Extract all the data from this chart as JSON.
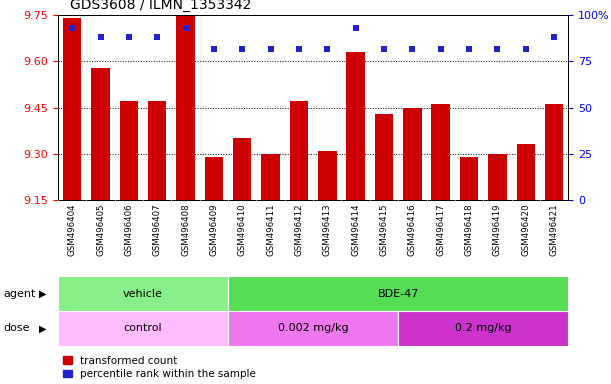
{
  "title": "GDS3608 / ILMN_1353342",
  "samples": [
    "GSM496404",
    "GSM496405",
    "GSM496406",
    "GSM496407",
    "GSM496408",
    "GSM496409",
    "GSM496410",
    "GSM496411",
    "GSM496412",
    "GSM496413",
    "GSM496414",
    "GSM496415",
    "GSM496416",
    "GSM496417",
    "GSM496418",
    "GSM496419",
    "GSM496420",
    "GSM496421"
  ],
  "bar_values": [
    9.74,
    9.58,
    9.47,
    9.47,
    9.75,
    9.29,
    9.35,
    9.3,
    9.47,
    9.31,
    9.63,
    9.43,
    9.45,
    9.46,
    9.29,
    9.3,
    9.33,
    9.46
  ],
  "percentile_values": [
    93,
    88,
    88,
    88,
    93,
    82,
    82,
    82,
    82,
    82,
    93,
    82,
    82,
    82,
    82,
    82,
    82,
    88
  ],
  "ylim_left": [
    9.15,
    9.75
  ],
  "ylim_right": [
    0,
    100
  ],
  "yticks_left": [
    9.15,
    9.3,
    9.45,
    9.6,
    9.75
  ],
  "yticks_right": [
    0,
    25,
    50,
    75,
    100
  ],
  "ytick_labels_right": [
    "0",
    "25",
    "50",
    "75",
    "100%"
  ],
  "bar_color": "#cc0000",
  "dot_color": "#2222cc",
  "agent_groups": [
    {
      "label": "vehicle",
      "start": 0,
      "end": 6,
      "color": "#88ee88"
    },
    {
      "label": "BDE-47",
      "start": 6,
      "end": 18,
      "color": "#55dd55"
    }
  ],
  "dose_groups": [
    {
      "label": "control",
      "start": 0,
      "end": 6,
      "color": "#ffaaff"
    },
    {
      "label": "0.002 mg/kg",
      "start": 6,
      "end": 12,
      "color": "#ee77ee"
    },
    {
      "label": "0.2 mg/kg",
      "start": 12,
      "end": 18,
      "color": "#cc33cc"
    }
  ],
  "legend_red_label": "transformed count",
  "legend_blue_label": "percentile rank within the sample",
  "background_color": "#ffffff",
  "xtick_bg_color": "#cccccc",
  "border_color": "#000000"
}
